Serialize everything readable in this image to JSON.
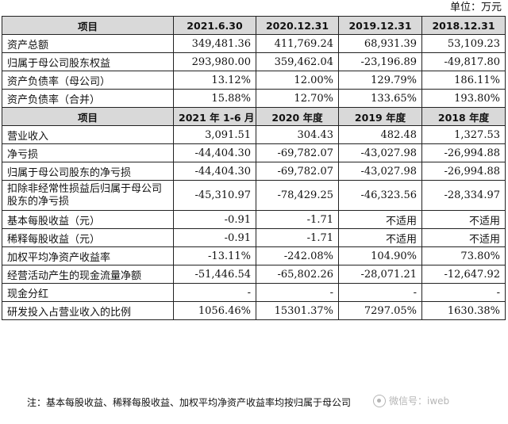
{
  "unit_label": "单位：万元",
  "section1": {
    "headers": [
      "项目",
      "2021.6.30",
      "2020.12.31",
      "2019.12.31",
      "2018.12.31"
    ],
    "rows": [
      {
        "label": "资产总额",
        "values": [
          "349,481.36",
          "411,769.24",
          "68,931.39",
          "53,109.23"
        ]
      },
      {
        "label": "归属于母公司股东权益",
        "values": [
          "293,980.00",
          "359,462.04",
          "-23,196.89",
          "-49,817.80"
        ]
      },
      {
        "label": "资产负债率（母公司）",
        "values": [
          "13.12%",
          "12.00%",
          "129.79%",
          "186.11%"
        ]
      },
      {
        "label": "资产负债率（合并）",
        "values": [
          "15.88%",
          "12.70%",
          "133.65%",
          "193.80%"
        ]
      }
    ]
  },
  "section2": {
    "headers": [
      "项目",
      "2021 年 1-6 月",
      "2020 年度",
      "2019 年度",
      "2018 年度"
    ],
    "rows": [
      {
        "label": "营业收入",
        "values": [
          "3,091.51",
          "304.43",
          "482.48",
          "1,327.53"
        ]
      },
      {
        "label": "净亏损",
        "values": [
          "-44,404.30",
          "-69,782.07",
          "-43,027.98",
          "-26,994.88"
        ]
      },
      {
        "label": "归属于母公司股东的净亏损",
        "values": [
          "-44,404.30",
          "-69,782.07",
          "-43,027.98",
          "-26,994.88"
        ]
      },
      {
        "label": "扣除非经常性损益后归属于母公司股东的净亏损",
        "values": [
          "-45,310.97",
          "-78,429.25",
          "-46,323.56",
          "-28,334.97"
        ],
        "tall": true
      },
      {
        "label": "基本每股收益（元）",
        "values": [
          "-0.91",
          "-1.71",
          "不适用",
          "不适用"
        ]
      },
      {
        "label": "稀释每股收益（元）",
        "values": [
          "-0.91",
          "-1.71",
          "不适用",
          "不适用"
        ]
      },
      {
        "label": "加权平均净资产收益率",
        "values": [
          "-13.11%",
          "-242.08%",
          "104.90%",
          "73.80%"
        ]
      },
      {
        "label": "经营活动产生的现金流量净额",
        "values": [
          "-51,446.54",
          "-65,802.26",
          "-28,071.21",
          "-12,647.92"
        ]
      },
      {
        "label": "现金分红",
        "values": [
          "-",
          "-",
          "-",
          "-"
        ]
      },
      {
        "label": "研发投入占营业收入的比例",
        "values": [
          "1056.46%",
          "15301.37%",
          "7297.05%",
          "1630.38%"
        ]
      }
    ]
  },
  "note": "注：基本每股收益、稀释每股收益、加权平均净资产收益率均按归属于母公司",
  "watermark": "微信号：iweb"
}
